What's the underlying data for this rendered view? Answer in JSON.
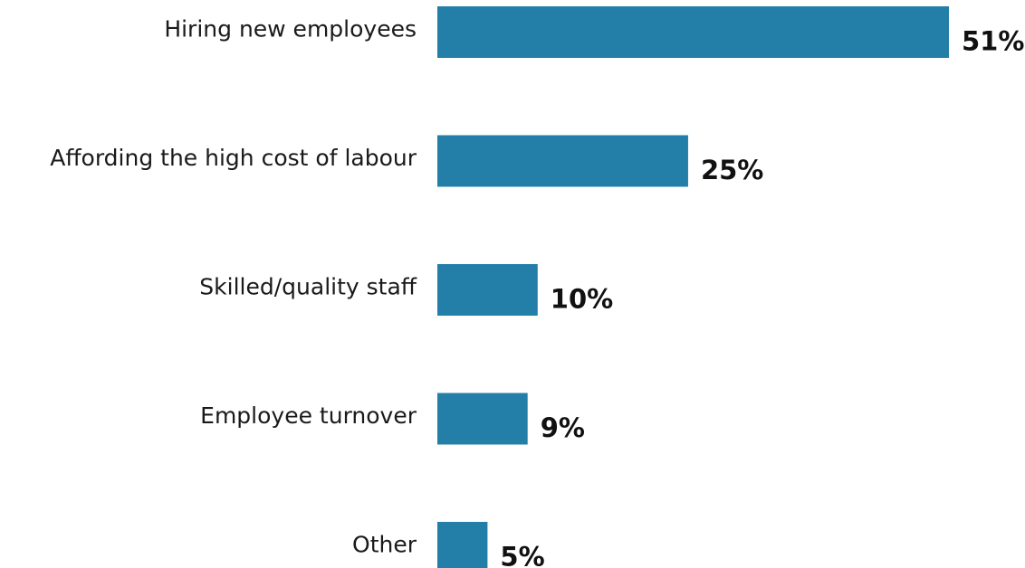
{
  "chart_data": {
    "type": "bar",
    "orientation": "horizontal",
    "categories": [
      "Hiring new employees",
      "Affording the high cost of labour",
      "Skilled/quality staff",
      "Employee turnover",
      "Other"
    ],
    "values": [
      51,
      25,
      10,
      9,
      5
    ],
    "value_labels": [
      "51%",
      "25%",
      "10%",
      "9%",
      "5%"
    ],
    "unit": "%",
    "xlim": [
      0,
      51
    ],
    "grid": false,
    "legend": "none",
    "colors": {
      "bar": "#237fa8",
      "category_text": "#1a1a1a",
      "value_text": "#111111"
    }
  }
}
